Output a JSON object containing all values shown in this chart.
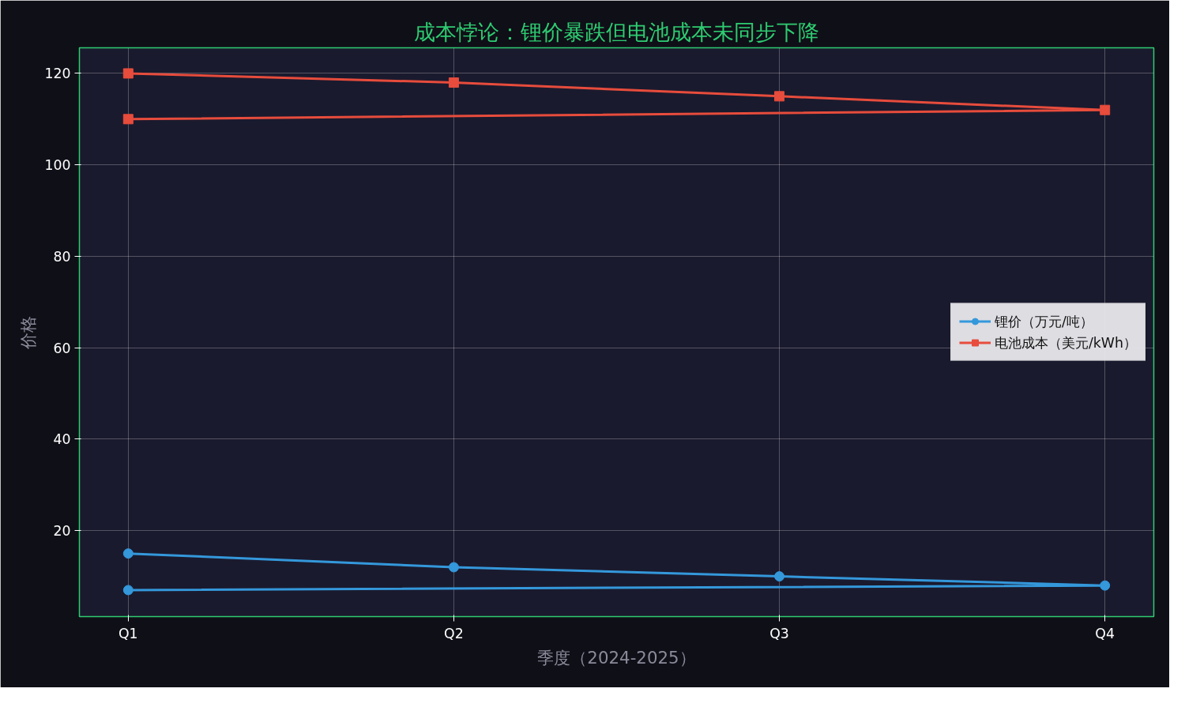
{
  "chart_data": {
    "type": "line",
    "title": "成本悖论：锂价暴跌但电池成本未同步下降",
    "xlabel": "季度（2024-2025）",
    "ylabel": "价格",
    "categories": [
      "Q1",
      "Q2",
      "Q3",
      "Q4"
    ],
    "series": [
      {
        "name": "锂价（万元/吨）",
        "color": "#3498db",
        "marker": "circle",
        "x": [
          "Q1",
          "Q2",
          "Q3",
          "Q4",
          "Q1"
        ],
        "values": [
          15,
          12,
          10,
          8,
          7
        ]
      },
      {
        "name": "电池成本（美元/kWh）",
        "color": "#e74c3c",
        "marker": "square",
        "x": [
          "Q1",
          "Q2",
          "Q3",
          "Q4",
          "Q1"
        ],
        "values": [
          120,
          118,
          115,
          112,
          110
        ]
      }
    ],
    "ylim": [
      1.2,
      125.6
    ],
    "yticks": [
      20,
      40,
      60,
      80,
      100,
      120
    ],
    "grid": true,
    "legend": "right",
    "line_style": "solid"
  }
}
